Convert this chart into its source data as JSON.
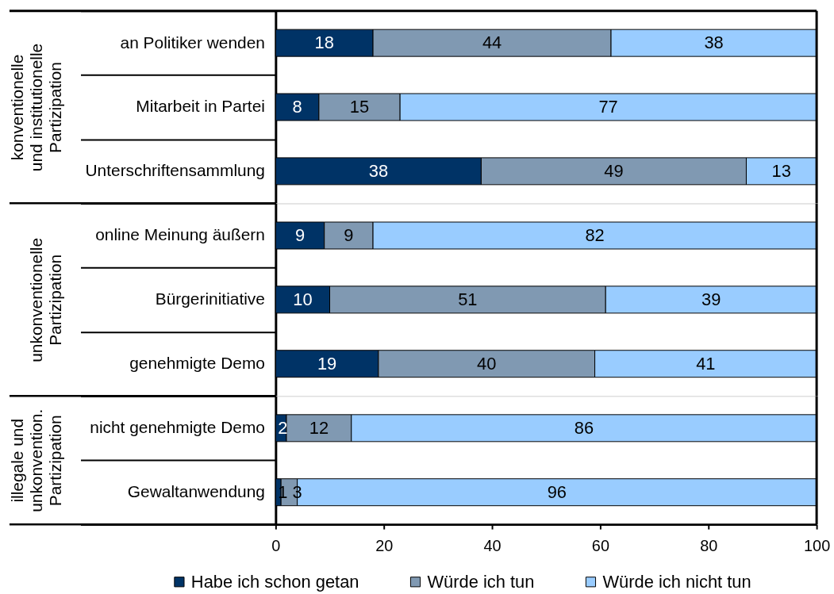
{
  "chart_data": [
    {
      "type": "bar",
      "orientation": "horizontal",
      "stacked": true,
      "ylabel": "konventionelle\nund institutionelle\nPartizipation",
      "categories": [
        "an Politiker wenden",
        "Mitarbeit in Partei",
        "Unterschriftensammlung"
      ],
      "series": [
        {
          "color": "#003366",
          "values": [
            18,
            8,
            38
          ]
        },
        {
          "color": "#8099b2",
          "values": [
            44,
            15,
            49
          ]
        },
        {
          "color": "#99ccff",
          "values": [
            38,
            77,
            13
          ]
        }
      ],
      "xlim": [
        0,
        100
      ],
      "data_labels": true,
      "tick_labels": "y",
      "legend": false
    },
    {
      "type": "bar",
      "orientation": "horizontal",
      "stacked": true,
      "ylabel": "unkonventionelle\nPartizipation",
      "categories": [
        "online Meinung äußern",
        "Bürgerinitiative",
        "genehmigte Demo"
      ],
      "series": [
        {
          "color": "#003366",
          "values": [
            9,
            10,
            19
          ]
        },
        {
          "color": "#8099b2",
          "values": [
            9,
            51,
            40
          ]
        },
        {
          "color": "#99ccff",
          "values": [
            82,
            39,
            41
          ]
        }
      ],
      "xlim": [
        0,
        100
      ],
      "data_labels": true,
      "tick_labels": "y",
      "legend": false
    },
    {
      "type": "bar",
      "orientation": "horizontal",
      "stacked": true,
      "ylabel": "illegale und\nunkonvention.\nPartizipation",
      "categories": [
        "nicht genehmigte Demo",
        "Gewaltanwendung"
      ],
      "series": [
        {
          "name": "Habe ich schon getan",
          "color": "#003366",
          "values": [
            2,
            1
          ]
        },
        {
          "name": "Würde ich tun",
          "color": "#8099b2",
          "values": [
            12,
            3
          ]
        },
        {
          "name": "Würde ich nicht tun",
          "color": "#99ccff",
          "values": [
            86,
            96
          ]
        }
      ],
      "xlim": [
        0,
        100
      ],
      "xticks": [
        0,
        20,
        40,
        60,
        80,
        100
      ],
      "data_labels": true,
      "legend": "bottom"
    }
  ]
}
